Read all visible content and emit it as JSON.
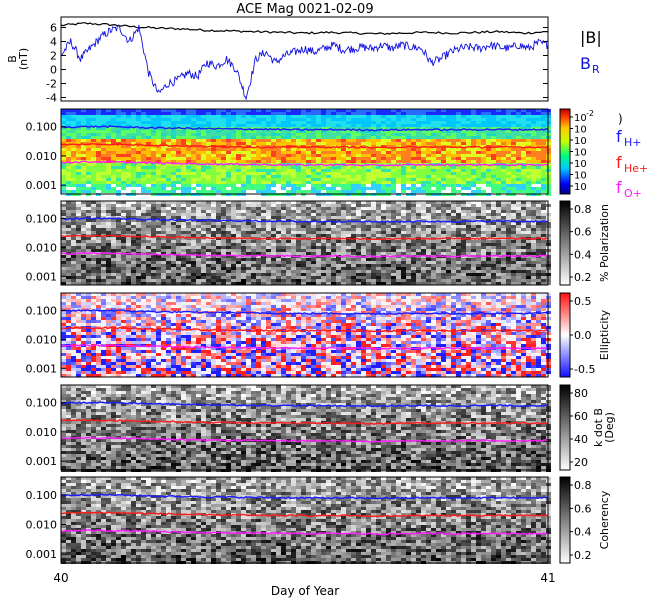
{
  "title": "ACE Mag 0021-02-09",
  "colors": {
    "B_total": "#000000",
    "B_R": "#1010e0",
    "f_H": "#1a1aff",
    "f_He": "#ff1a1a",
    "f_O": "#ff1aff"
  },
  "chart_data": [
    {
      "type": "line",
      "panel": "magnetic-field",
      "ylabel_lines": [
        "B",
        "(nT)"
      ],
      "ylim": [
        -4.5,
        7.5
      ],
      "yticks": [
        -4,
        -2,
        0,
        2,
        4,
        6
      ],
      "xlim": [
        40,
        41
      ],
      "legend": [
        "|B|",
        "B_R"
      ],
      "legend_display": {
        "b_total": "|B|",
        "b_r_main": "B",
        "b_r_sub": "R"
      },
      "series": [
        {
          "name": "|B|",
          "color": "#000000",
          "x": [
            40.0,
            40.05,
            40.1,
            40.15,
            40.2,
            40.25,
            40.3,
            40.35,
            40.4,
            40.45,
            40.5,
            40.55,
            40.6,
            40.65,
            40.7,
            40.75,
            40.8,
            40.85,
            40.9,
            40.95,
            41.0
          ],
          "y": [
            6.3,
            6.6,
            6.4,
            6.1,
            5.9,
            5.8,
            5.6,
            5.5,
            5.4,
            5.3,
            5.2,
            5.3,
            5.2,
            5.1,
            5.2,
            5.3,
            5.2,
            5.3,
            5.4,
            5.2,
            5.4
          ]
        },
        {
          "name": "B_R",
          "color": "#1010e0",
          "x": [
            40.0,
            40.02,
            40.04,
            40.06,
            40.08,
            40.1,
            40.12,
            40.14,
            40.16,
            40.18,
            40.2,
            40.22,
            40.24,
            40.26,
            40.28,
            40.3,
            40.32,
            40.34,
            40.36,
            40.38,
            40.4,
            40.42,
            40.44,
            40.46,
            40.48,
            40.5,
            40.52,
            40.54,
            40.56,
            40.58,
            40.6,
            40.62,
            40.64,
            40.66,
            40.68,
            40.7,
            40.72,
            40.74,
            40.76,
            40.78,
            40.8,
            40.82,
            40.84,
            40.86,
            40.88,
            40.9,
            40.92,
            40.94,
            40.96,
            40.98,
            41.0
          ],
          "y": [
            2.0,
            4.0,
            1.5,
            3.0,
            4.5,
            5.5,
            6.0,
            4.0,
            6.0,
            -0.5,
            -3.5,
            -2.0,
            -1.5,
            -0.5,
            -1.0,
            1.0,
            0.5,
            1.5,
            0.0,
            -4.0,
            1.5,
            2.5,
            1.0,
            2.0,
            2.5,
            3.0,
            2.5,
            3.0,
            3.5,
            2.8,
            3.0,
            3.2,
            3.0,
            3.5,
            3.0,
            3.5,
            3.2,
            3.0,
            1.0,
            1.5,
            2.5,
            3.0,
            3.2,
            3.0,
            3.5,
            3.2,
            3.0,
            3.5,
            3.0,
            3.8,
            3.5
          ]
        }
      ]
    },
    {
      "type": "heatmap",
      "panel": "power",
      "ylabel": "",
      "yscale": "log",
      "ylim": [
        0.0005,
        0.4
      ],
      "yticks": [
        "0.100",
        "0.010",
        "0.001"
      ],
      "colorbar": {
        "ticks": [
          "10^-2",
          "10",
          "10",
          "10",
          "10",
          "10",
          "10"
        ],
        "label": ")",
        "scale": "rainbow"
      },
      "legend": [
        "f_H+",
        "f_He+",
        "f_O+"
      ],
      "legend_display": [
        {
          "main": "f",
          "sub": "H+",
          "color": "#1a1aff"
        },
        {
          "main": "f",
          "sub": "He+",
          "color": "#ff1a1a"
        },
        {
          "main": "f",
          "sub": "O+",
          "color": "#ff1aff"
        }
      ]
    },
    {
      "type": "heatmap",
      "panel": "polarization",
      "yscale": "log",
      "ylim": [
        0.0005,
        0.4
      ],
      "yticks": [
        "0.100",
        "0.010",
        "0.001"
      ],
      "colorbar": {
        "ticks": [
          "0.8",
          "0.6",
          "0.4",
          "0.2"
        ],
        "label": "% Polarization",
        "scale": "gray"
      }
    },
    {
      "type": "heatmap",
      "panel": "ellipticity",
      "yscale": "log",
      "ylim": [
        0.0005,
        0.4
      ],
      "yticks": [
        "0.100",
        "0.010",
        "0.001"
      ],
      "colorbar": {
        "ticks": [
          "0.5",
          "0.0",
          "-0.5"
        ],
        "label": "Ellipticity",
        "scale": "bwr"
      }
    },
    {
      "type": "heatmap",
      "panel": "k-dot-b",
      "yscale": "log",
      "ylim": [
        0.0005,
        0.4
      ],
      "yticks": [
        "0.100",
        "0.010",
        "0.001"
      ],
      "colorbar": {
        "ticks": [
          "80",
          "60",
          "40",
          "20"
        ],
        "label_lines": [
          "k dot B",
          "(Deg)"
        ],
        "scale": "gray"
      }
    },
    {
      "type": "heatmap",
      "panel": "coherency",
      "yscale": "log",
      "ylim": [
        0.0005,
        0.4
      ],
      "yticks": [
        "0.100",
        "0.010",
        "0.001"
      ],
      "colorbar": {
        "ticks": [
          "0.8",
          "0.6",
          "0.4",
          "0.2"
        ],
        "label": "Coherency",
        "scale": "gray"
      }
    }
  ],
  "x_axis": {
    "label": "Day of Year",
    "ticks": [
      "40",
      "41"
    ],
    "xlim": [
      40,
      41
    ]
  },
  "gyrofrequency_lines": {
    "x": [
      40.0,
      40.05,
      40.1,
      40.15,
      40.2,
      40.25,
      40.3,
      40.35,
      40.4,
      40.45,
      40.5,
      40.55,
      40.6,
      40.65,
      40.7,
      40.75,
      40.8,
      40.85,
      40.9,
      40.95,
      41.0
    ],
    "f_H": [
      0.095,
      0.1,
      0.1,
      0.095,
      0.09,
      0.088,
      0.085,
      0.083,
      0.082,
      0.08,
      0.078,
      0.079,
      0.078,
      0.077,
      0.078,
      0.079,
      0.078,
      0.079,
      0.08,
      0.078,
      0.081
    ],
    "f_He": [
      0.024,
      0.025,
      0.025,
      0.024,
      0.023,
      0.022,
      0.021,
      0.021,
      0.02,
      0.02,
      0.02,
      0.02,
      0.02,
      0.019,
      0.02,
      0.02,
      0.02,
      0.02,
      0.02,
      0.02,
      0.02
    ],
    "f_O": [
      0.006,
      0.0063,
      0.0062,
      0.006,
      0.0057,
      0.0055,
      0.0053,
      0.0052,
      0.0051,
      0.005,
      0.0049,
      0.005,
      0.0049,
      0.0048,
      0.0049,
      0.005,
      0.0049,
      0.005,
      0.005,
      0.0049,
      0.0051
    ]
  }
}
